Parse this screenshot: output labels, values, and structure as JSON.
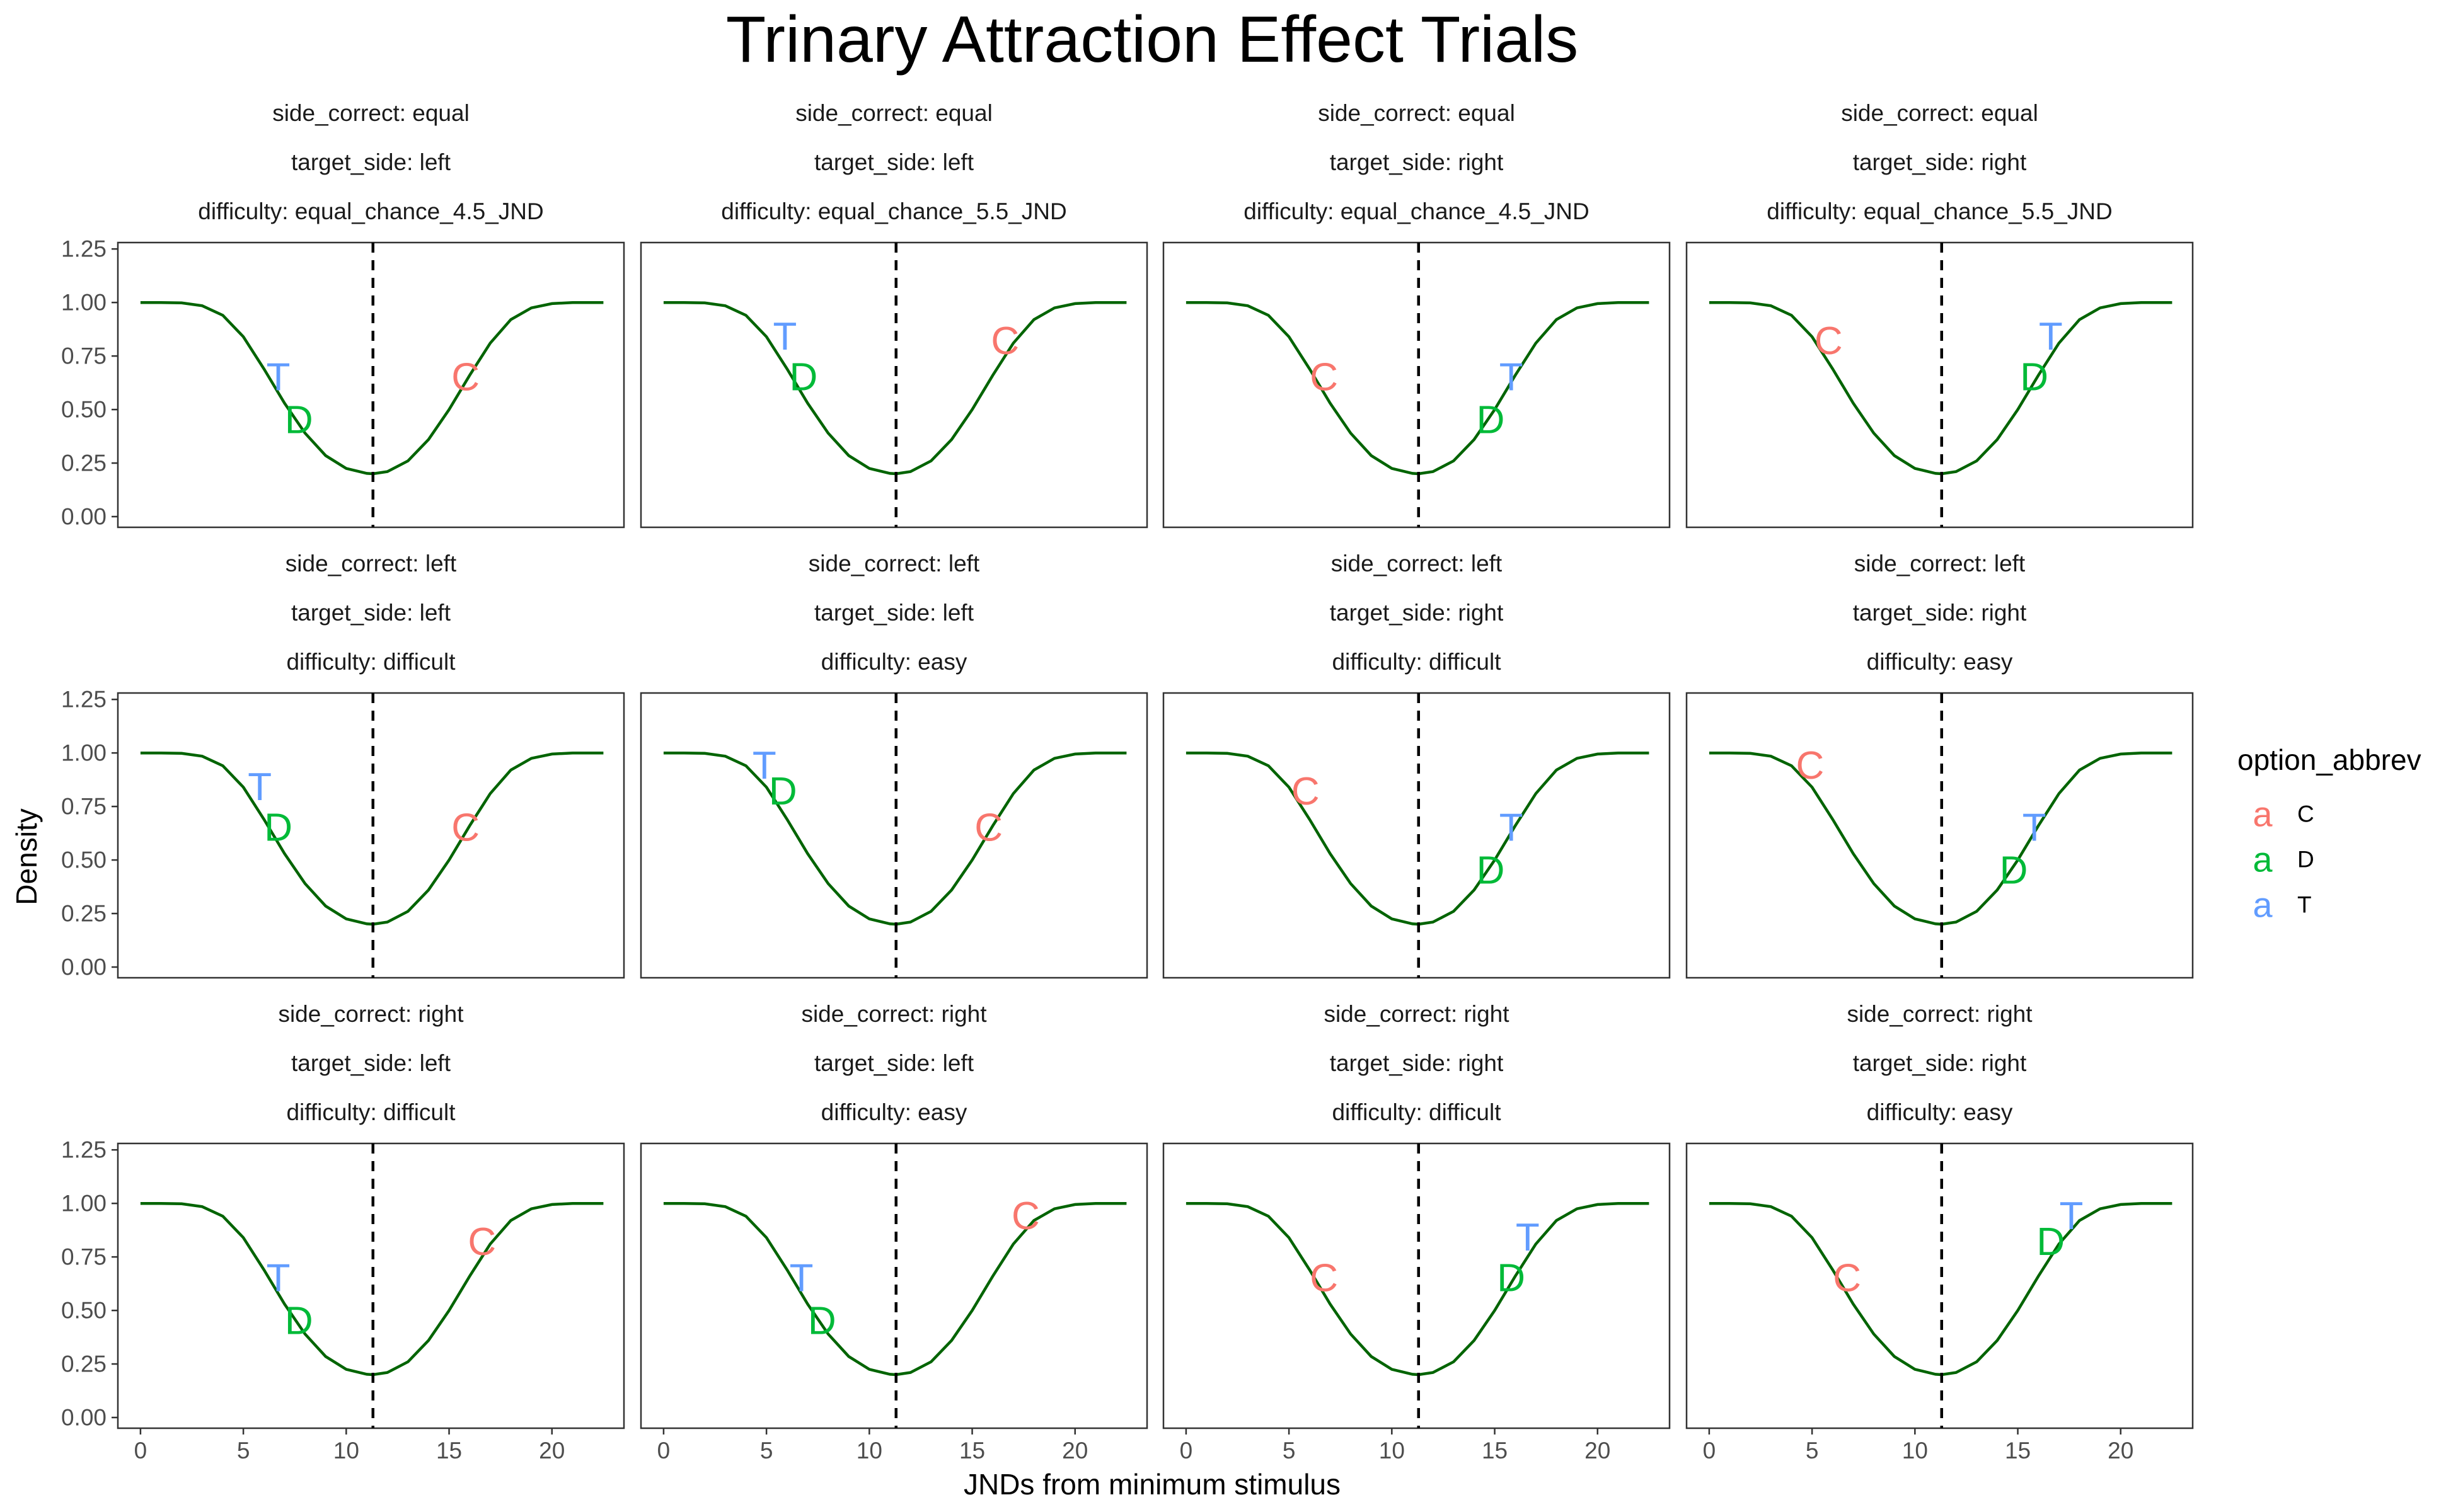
{
  "chart_data": {
    "type": "line",
    "title": "Trinary Attraction Effect Trials",
    "xlabel": "JNDs from minimum stimulus",
    "ylabel": "Density",
    "xlim": [
      -1.1,
      23.5
    ],
    "ylim": [
      -0.05,
      1.28
    ],
    "x_ticks": [
      0,
      5,
      10,
      15,
      20
    ],
    "x_tick_labels": [
      "0",
      "5",
      "10",
      "15",
      "20"
    ],
    "y_ticks": [
      0,
      0.25,
      0.5,
      0.75,
      1.0,
      1.25
    ],
    "y_tick_labels": [
      "0.00",
      "0.25",
      "0.50",
      "0.75",
      "1.00",
      "1.25"
    ],
    "curve": {
      "description": "density curve, same for every panel",
      "x": [
        0,
        1,
        2,
        3,
        4,
        5,
        6,
        7,
        8,
        9,
        10,
        11,
        11.3,
        12,
        13,
        14,
        15,
        16,
        17,
        18,
        19,
        20,
        21,
        22,
        22.5
      ],
      "y": [
        1.0,
        1.0,
        0.998,
        0.985,
        0.94,
        0.84,
        0.69,
        0.53,
        0.39,
        0.285,
        0.225,
        0.202,
        0.2,
        0.21,
        0.26,
        0.36,
        0.5,
        0.66,
        0.81,
        0.92,
        0.975,
        0.995,
        1.0,
        1.0,
        1.0
      ],
      "color": "#006400"
    },
    "vline_x": 11.3,
    "legend": {
      "title": "option_abbrev",
      "key_glyph": "a",
      "entries": [
        {
          "label": "C",
          "color": "#F8766D"
        },
        {
          "label": "D",
          "color": "#00BA38"
        },
        {
          "label": "T",
          "color": "#619CFF"
        }
      ]
    },
    "panels": [
      {
        "strip": [
          "side_correct: equal",
          "target_side: left",
          "difficulty: equal_chance_4.5_JND"
        ],
        "points": [
          {
            "label": "T",
            "x": 6.7,
            "y": 0.65
          },
          {
            "label": "D",
            "x": 7.7,
            "y": 0.45
          },
          {
            "label": "C",
            "x": 15.8,
            "y": 0.65
          }
        ]
      },
      {
        "strip": [
          "side_correct: equal",
          "target_side: left",
          "difficulty: equal_chance_5.5_JND"
        ],
        "points": [
          {
            "label": "T",
            "x": 5.9,
            "y": 0.84
          },
          {
            "label": "D",
            "x": 6.8,
            "y": 0.65
          },
          {
            "label": "C",
            "x": 16.6,
            "y": 0.82
          }
        ]
      },
      {
        "strip": [
          "side_correct: equal",
          "target_side: right",
          "difficulty: equal_chance_4.5_JND"
        ],
        "points": [
          {
            "label": "C",
            "x": 6.7,
            "y": 0.65
          },
          {
            "label": "T",
            "x": 15.8,
            "y": 0.65
          },
          {
            "label": "D",
            "x": 14.8,
            "y": 0.45
          }
        ]
      },
      {
        "strip": [
          "side_correct: equal",
          "target_side: right",
          "difficulty: equal_chance_5.5_JND"
        ],
        "points": [
          {
            "label": "C",
            "x": 5.8,
            "y": 0.82
          },
          {
            "label": "T",
            "x": 16.6,
            "y": 0.84
          },
          {
            "label": "D",
            "x": 15.8,
            "y": 0.65
          }
        ]
      },
      {
        "strip": [
          "side_correct: left",
          "target_side: left",
          "difficulty: difficult"
        ],
        "points": [
          {
            "label": "T",
            "x": 5.8,
            "y": 0.84
          },
          {
            "label": "D",
            "x": 6.7,
            "y": 0.65
          },
          {
            "label": "C",
            "x": 15.8,
            "y": 0.65
          }
        ]
      },
      {
        "strip": [
          "side_correct: left",
          "target_side: left",
          "difficulty: easy"
        ],
        "points": [
          {
            "label": "T",
            "x": 4.9,
            "y": 0.94
          },
          {
            "label": "D",
            "x": 5.8,
            "y": 0.82
          },
          {
            "label": "C",
            "x": 15.8,
            "y": 0.65
          }
        ]
      },
      {
        "strip": [
          "side_correct: left",
          "target_side: right",
          "difficulty: difficult"
        ],
        "points": [
          {
            "label": "C",
            "x": 5.8,
            "y": 0.82
          },
          {
            "label": "T",
            "x": 15.8,
            "y": 0.65
          },
          {
            "label": "D",
            "x": 14.8,
            "y": 0.45
          }
        ]
      },
      {
        "strip": [
          "side_correct: left",
          "target_side: right",
          "difficulty: easy"
        ],
        "points": [
          {
            "label": "C",
            "x": 4.9,
            "y": 0.94
          },
          {
            "label": "T",
            "x": 15.8,
            "y": 0.65
          },
          {
            "label": "D",
            "x": 14.8,
            "y": 0.45
          }
        ]
      },
      {
        "strip": [
          "side_correct: right",
          "target_side: left",
          "difficulty: difficult"
        ],
        "points": [
          {
            "label": "T",
            "x": 6.7,
            "y": 0.65
          },
          {
            "label": "D",
            "x": 7.7,
            "y": 0.45
          },
          {
            "label": "C",
            "x": 16.6,
            "y": 0.82
          }
        ]
      },
      {
        "strip": [
          "side_correct: right",
          "target_side: left",
          "difficulty: easy"
        ],
        "points": [
          {
            "label": "T",
            "x": 6.7,
            "y": 0.65
          },
          {
            "label": "D",
            "x": 7.7,
            "y": 0.45
          },
          {
            "label": "C",
            "x": 17.6,
            "y": 0.94
          }
        ]
      },
      {
        "strip": [
          "side_correct: right",
          "target_side: right",
          "difficulty: difficult"
        ],
        "points": [
          {
            "label": "C",
            "x": 6.7,
            "y": 0.65
          },
          {
            "label": "T",
            "x": 16.6,
            "y": 0.84
          },
          {
            "label": "D",
            "x": 15.8,
            "y": 0.65
          }
        ]
      },
      {
        "strip": [
          "side_correct: right",
          "target_side: right",
          "difficulty: easy"
        ],
        "points": [
          {
            "label": "C",
            "x": 6.7,
            "y": 0.65
          },
          {
            "label": "T",
            "x": 17.6,
            "y": 0.94
          },
          {
            "label": "D",
            "x": 16.6,
            "y": 0.82
          }
        ]
      }
    ]
  }
}
